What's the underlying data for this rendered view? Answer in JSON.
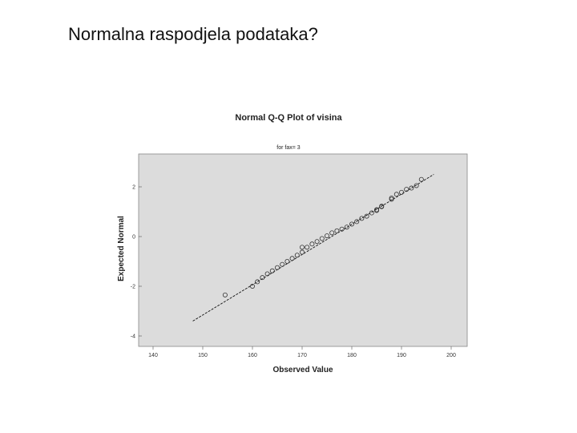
{
  "slide": {
    "title": "Normalna raspodjela podataka?"
  },
  "chart_data": {
    "type": "scatter",
    "title": "Normal Q-Q Plot of visina",
    "subtitle": "for fax= 3",
    "xlabel": "Observed Value",
    "ylabel": "Expected Normal",
    "xlim": [
      140,
      200
    ],
    "ylim": [
      -4,
      3
    ],
    "x_ticks": [
      140,
      150,
      160,
      170,
      180,
      190,
      200
    ],
    "y_ticks": [
      -4,
      -2,
      0,
      2
    ],
    "grid": false,
    "background_color": "#dcdcdc",
    "marker_color": "#333333",
    "reference_line": {
      "style": "dashed",
      "from": [
        148,
        -3.4
      ],
      "to": [
        196.5,
        2.5
      ]
    },
    "points": [
      [
        154.5,
        -2.35
      ],
      [
        160,
        -2.0
      ],
      [
        161,
        -1.82
      ],
      [
        162,
        -1.65
      ],
      [
        163,
        -1.5
      ],
      [
        164,
        -1.38
      ],
      [
        165,
        -1.25
      ],
      [
        166,
        -1.12
      ],
      [
        167,
        -1.0
      ],
      [
        168,
        -0.88
      ],
      [
        169,
        -0.75
      ],
      [
        170,
        -0.63
      ],
      [
        170,
        -0.43
      ],
      [
        171,
        -0.43
      ],
      [
        172,
        -0.3
      ],
      [
        173,
        -0.2
      ],
      [
        174,
        -0.08
      ],
      [
        175,
        0.03
      ],
      [
        176,
        0.15
      ],
      [
        177,
        0.23
      ],
      [
        178,
        0.3
      ],
      [
        179,
        0.38
      ],
      [
        180,
        0.5
      ],
      [
        181,
        0.6
      ],
      [
        182,
        0.73
      ],
      [
        183,
        0.82
      ],
      [
        184,
        0.95
      ],
      [
        185,
        1.05
      ],
      [
        185,
        1.08
      ],
      [
        186,
        1.2
      ],
      [
        186,
        1.22
      ],
      [
        188,
        1.5
      ],
      [
        188,
        1.55
      ],
      [
        189,
        1.7
      ],
      [
        190,
        1.78
      ],
      [
        191,
        1.9
      ],
      [
        192,
        1.95
      ],
      [
        193,
        2.05
      ],
      [
        194,
        2.3
      ]
    ]
  }
}
